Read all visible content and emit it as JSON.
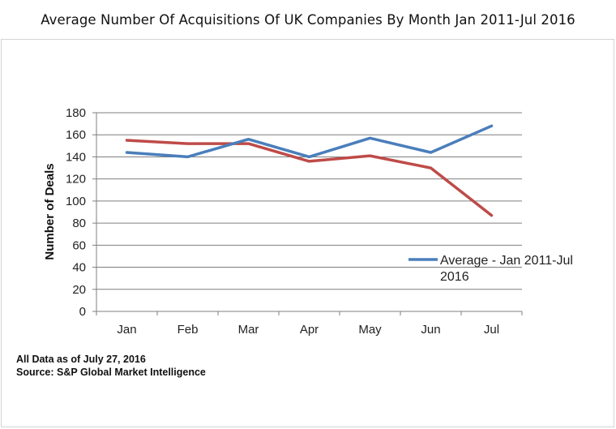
{
  "chart_data": {
    "type": "line",
    "title": "Average Number Of Acquisitions Of UK Companies By Month Jan 2011-Jul 2016",
    "xlabel": "",
    "ylabel": "Number of Deals",
    "categories": [
      "Jan",
      "Feb",
      "Mar",
      "Apr",
      "May",
      "Jun",
      "Jul"
    ],
    "ylim": [
      0,
      180
    ],
    "yticks": [
      0,
      20,
      40,
      60,
      80,
      100,
      120,
      140,
      160,
      180
    ],
    "grid": true,
    "legend_position": "right",
    "series": [
      {
        "name": "Average - Jan 2011-Jul 2016",
        "color": "#4a7ebb",
        "values": [
          144,
          140,
          156,
          140,
          157,
          144,
          168
        ]
      },
      {
        "color": "#be4b48",
        "values": [
          155,
          152,
          152,
          136,
          141,
          130,
          87
        ]
      }
    ]
  },
  "footer": {
    "data_note": "All Data as of July 27, 2016",
    "source": "Source: S&P Global Market Intelligence"
  }
}
